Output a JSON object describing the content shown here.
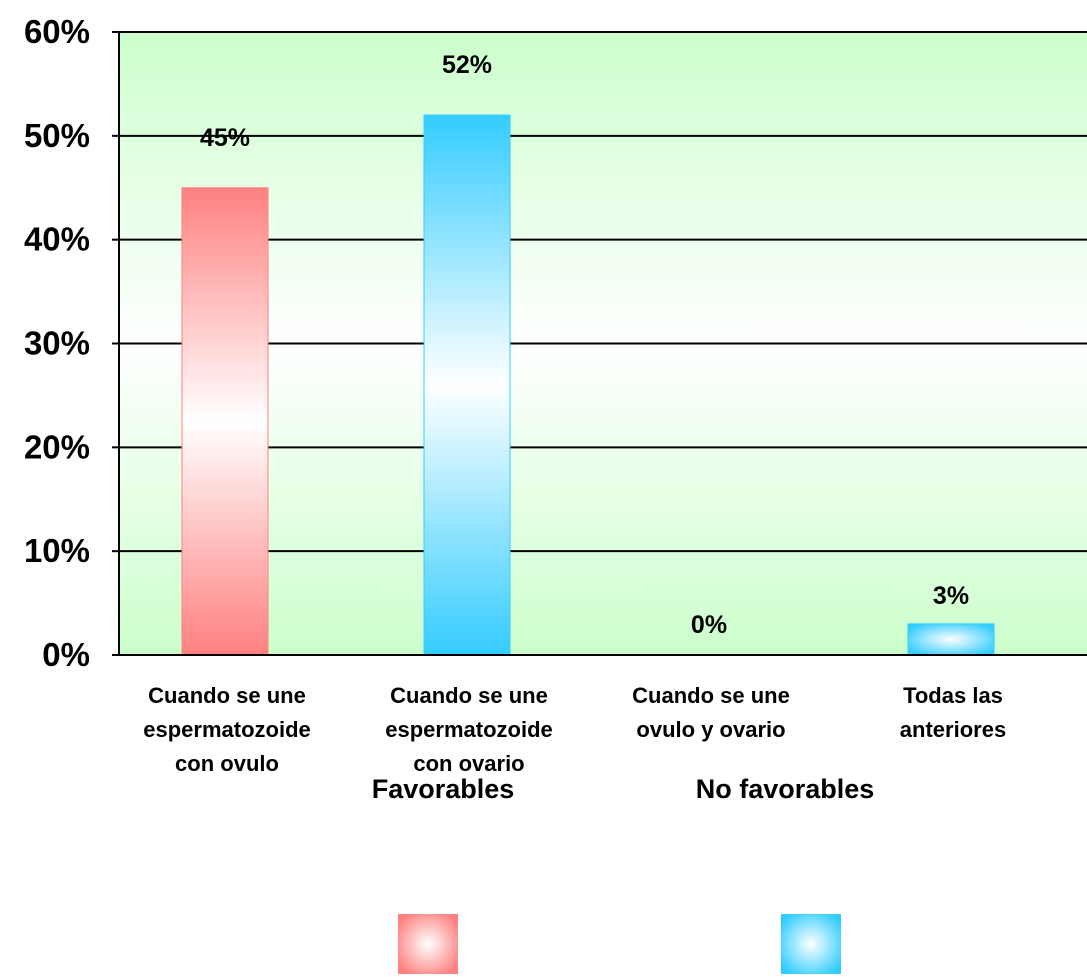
{
  "chart_data": {
    "type": "bar",
    "title": "",
    "xlabel": "",
    "ylabel": "",
    "ylim": [
      0,
      60
    ],
    "y_ticks": [
      0,
      10,
      20,
      30,
      40,
      50,
      60
    ],
    "y_tick_suffix": "%",
    "grid": true,
    "categories": [
      [
        "Cuando se une",
        "espermatozoide",
        "con ovulo"
      ],
      [
        "Cuando se une",
        "espermatozoide",
        "con ovario"
      ],
      [
        "Cuando se une",
        "ovulo y ovario"
      ],
      [
        "Todas las",
        "anteriores"
      ]
    ],
    "values": [
      45,
      52,
      0,
      3
    ],
    "data_labels": [
      "45%",
      "52%",
      "0%",
      "3%"
    ],
    "bar_series": [
      "Favorables",
      "No favorables",
      "No favorables",
      "No favorables"
    ],
    "legend_position": "bottom",
    "series": [
      {
        "name": "Favorables",
        "color": "#ff8080"
      },
      {
        "name": "No favorables",
        "color": "#33ccff"
      }
    ],
    "plot_background": "#ccffcc"
  }
}
